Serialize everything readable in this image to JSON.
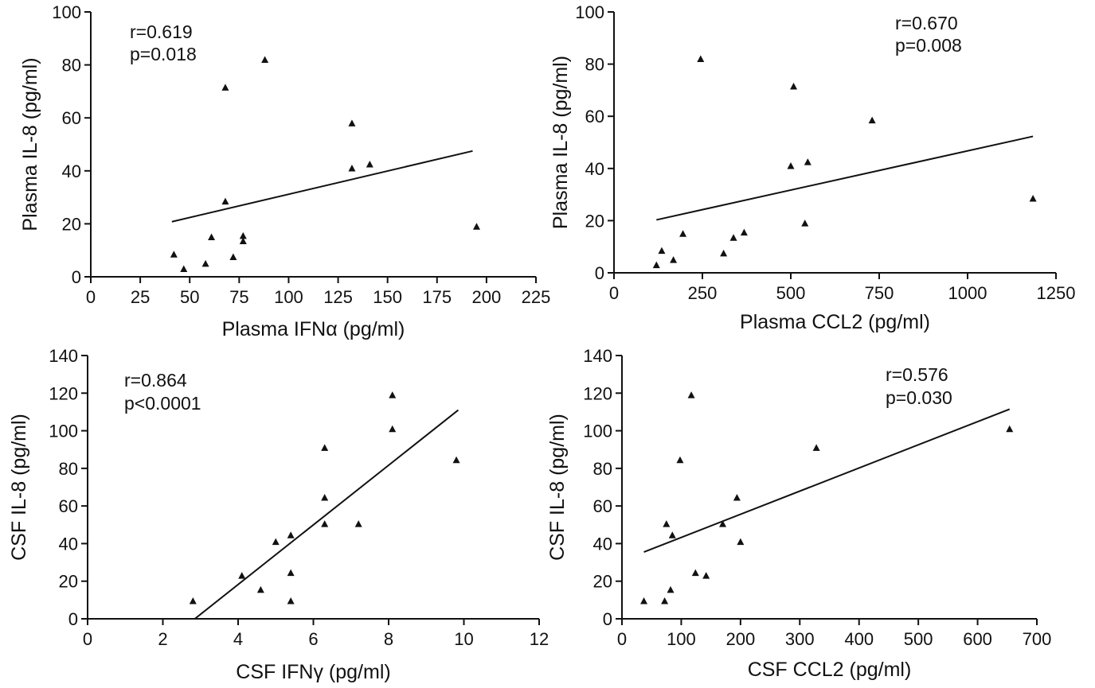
{
  "chart_data": [
    {
      "type": "scatter",
      "xlabel": "Plasma IFNα (pg/ml)",
      "ylabel": "Plasma IL-8 (pg/ml)",
      "xlim": [
        0,
        225
      ],
      "ylim": [
        0,
        100
      ],
      "xticks": [
        0,
        25,
        50,
        75,
        100,
        125,
        150,
        175,
        200,
        225
      ],
      "yticks": [
        0,
        20,
        40,
        60,
        80,
        100
      ],
      "annotation": [
        "r=0.619",
        "p=0.018"
      ],
      "points": [
        {
          "x": 42,
          "y": 8.5
        },
        {
          "x": 47,
          "y": 3
        },
        {
          "x": 58,
          "y": 5
        },
        {
          "x": 61,
          "y": 15
        },
        {
          "x": 68,
          "y": 71.5
        },
        {
          "x": 68,
          "y": 28.5
        },
        {
          "x": 72,
          "y": 7.5
        },
        {
          "x": 77,
          "y": 15.5
        },
        {
          "x": 77,
          "y": 13.5
        },
        {
          "x": 88,
          "y": 82
        },
        {
          "x": 132,
          "y": 58
        },
        {
          "x": 132,
          "y": 41
        },
        {
          "x": 141,
          "y": 42.5
        },
        {
          "x": 195,
          "y": 19
        }
      ],
      "fit_line": [
        {
          "x": 41,
          "y": 20.8
        },
        {
          "x": 193,
          "y": 47.5
        }
      ],
      "grid": false
    },
    {
      "type": "scatter",
      "xlabel": "Plasma CCL2 (pg/ml)",
      "ylabel": "Plasma IL-8 (pg/ml)",
      "xlim": [
        0,
        1250
      ],
      "ylim": [
        0,
        100
      ],
      "xticks": [
        0,
        250,
        500,
        750,
        1000,
        1250
      ],
      "yticks": [
        0,
        20,
        40,
        60,
        80,
        100
      ],
      "annotation": [
        "r=0.670",
        "p=0.008"
      ],
      "points": [
        {
          "x": 120,
          "y": 3
        },
        {
          "x": 135,
          "y": 8.5
        },
        {
          "x": 168,
          "y": 5
        },
        {
          "x": 195,
          "y": 15
        },
        {
          "x": 245,
          "y": 82
        },
        {
          "x": 310,
          "y": 7.5
        },
        {
          "x": 338,
          "y": 13.5
        },
        {
          "x": 368,
          "y": 15.5
        },
        {
          "x": 500,
          "y": 41
        },
        {
          "x": 508,
          "y": 71.5
        },
        {
          "x": 540,
          "y": 19
        },
        {
          "x": 548,
          "y": 42.5
        },
        {
          "x": 730,
          "y": 58.5
        },
        {
          "x": 1185,
          "y": 28.5
        }
      ],
      "fit_line": [
        {
          "x": 120,
          "y": 20.3
        },
        {
          "x": 1185,
          "y": 52.3
        }
      ],
      "grid": false
    },
    {
      "type": "scatter",
      "xlabel": "CSF IFNγ (pg/ml)",
      "ylabel": "CSF IL-8 (pg/ml)",
      "xlim": [
        0,
        12
      ],
      "ylim": [
        0,
        140
      ],
      "xticks": [
        0,
        2,
        4,
        6,
        8,
        10,
        12
      ],
      "yticks": [
        0,
        20,
        40,
        60,
        80,
        100,
        120,
        140
      ],
      "annotation": [
        "r=0.864",
        "p<0.0001"
      ],
      "points": [
        {
          "x": 2.8,
          "y": 9.5
        },
        {
          "x": 4.1,
          "y": 23
        },
        {
          "x": 4.6,
          "y": 15.5
        },
        {
          "x": 5.0,
          "y": 41
        },
        {
          "x": 5.4,
          "y": 44.5
        },
        {
          "x": 5.4,
          "y": 24.5
        },
        {
          "x": 5.4,
          "y": 9.5
        },
        {
          "x": 6.3,
          "y": 91
        },
        {
          "x": 6.3,
          "y": 64.5
        },
        {
          "x": 6.3,
          "y": 50.5
        },
        {
          "x": 7.2,
          "y": 50.5
        },
        {
          "x": 8.1,
          "y": 119
        },
        {
          "x": 8.1,
          "y": 101
        },
        {
          "x": 9.8,
          "y": 84.5
        }
      ],
      "fit_line": [
        {
          "x": 2.85,
          "y": 0
        },
        {
          "x": 9.85,
          "y": 111
        }
      ],
      "grid": false
    },
    {
      "type": "scatter",
      "xlabel": "CSF CCL2 (pg/ml)",
      "ylabel": "CSF IL-8 (pg/ml)",
      "xlim": [
        0,
        700
      ],
      "ylim": [
        0,
        140
      ],
      "xticks": [
        0,
        100,
        200,
        300,
        400,
        500,
        600,
        700
      ],
      "yticks": [
        0,
        20,
        40,
        60,
        80,
        100,
        120,
        140
      ],
      "annotation": [
        "r=0.576",
        "p=0.030"
      ],
      "points": [
        {
          "x": 37,
          "y": 9.5
        },
        {
          "x": 72,
          "y": 9.5
        },
        {
          "x": 75,
          "y": 50.5
        },
        {
          "x": 82,
          "y": 15.5
        },
        {
          "x": 85,
          "y": 44.5
        },
        {
          "x": 98,
          "y": 84.5
        },
        {
          "x": 117,
          "y": 119
        },
        {
          "x": 124,
          "y": 24.5
        },
        {
          "x": 142,
          "y": 23
        },
        {
          "x": 170,
          "y": 50.5
        },
        {
          "x": 194,
          "y": 64.5
        },
        {
          "x": 200,
          "y": 41
        },
        {
          "x": 328,
          "y": 91
        },
        {
          "x": 654,
          "y": 101
        }
      ],
      "fit_line": [
        {
          "x": 37,
          "y": 35.5
        },
        {
          "x": 654,
          "y": 111.5
        }
      ],
      "grid": false
    }
  ]
}
